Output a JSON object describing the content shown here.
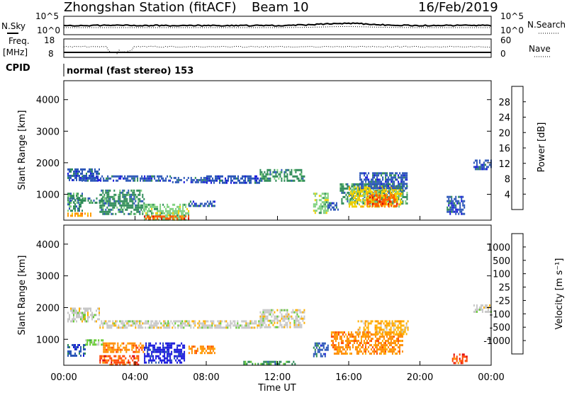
{
  "header": {
    "station": "Zhongshan Station (fitACF)",
    "beam": "Beam 10",
    "date": "16/Feb/2019"
  },
  "noise_panel": {
    "left_label": "N.Sky",
    "left_ticks": [
      "10^5",
      "10^0"
    ],
    "right_ticks": [
      "10^5",
      "10^0"
    ],
    "right_label": "N.Search"
  },
  "freq_panel": {
    "left_label_1": "Freq.",
    "left_label_2": "[MHz]",
    "left_ticks": [
      "18",
      "8"
    ],
    "right_ticks": [
      "60",
      "0"
    ],
    "right_label": "Nave"
  },
  "cpid": {
    "label": "CPID",
    "value": "normal (fast stereo) 153"
  },
  "colors": {
    "power": [
      "#1a1adc",
      "#2b56b8",
      "#2e8b57",
      "#7fd17f",
      "#f0d000",
      "#ff9900",
      "#ff5a00",
      "#e00000"
    ],
    "velocity": [
      "#e00000",
      "#ff4400",
      "#ff8c00",
      "#ffb000",
      "#c8c8c8",
      "#66cc33",
      "#2e8b57",
      "#2b56b8",
      "#1a1adc"
    ]
  },
  "chart_data": [
    {
      "type": "heatmap",
      "title": "",
      "ylabel": "Slant Range [km]",
      "xlabel": "",
      "ylim": [
        180,
        4600
      ],
      "yticks": [
        "1000",
        "2000",
        "3000",
        "4000"
      ],
      "colorbar": {
        "label": "Power [dB]",
        "ticks": [
          "4",
          "8",
          "12",
          "16",
          "20",
          "24",
          "28"
        ],
        "range": [
          0,
          32
        ]
      },
      "regions": [
        {
          "t0": 0.2,
          "t1": 2.0,
          "r0": 1480,
          "r1": 1820,
          "v": 6
        },
        {
          "t0": 1.0,
          "t1": 6.0,
          "r0": 1400,
          "r1": 1600,
          "v": 5
        },
        {
          "t0": 6.0,
          "t1": 8.0,
          "r0": 1350,
          "r1": 1550,
          "v": 4
        },
        {
          "t0": 8.0,
          "t1": 11.0,
          "r0": 1380,
          "r1": 1600,
          "v": 5
        },
        {
          "t0": 11.0,
          "t1": 13.5,
          "r0": 1400,
          "r1": 1800,
          "v": 8
        },
        {
          "t0": 0.2,
          "t1": 1.0,
          "r0": 500,
          "r1": 1050,
          "v": 8
        },
        {
          "t0": 0.2,
          "t1": 1.5,
          "r0": 320,
          "r1": 420,
          "v": 22
        },
        {
          "t0": 0.3,
          "t1": 2.4,
          "r0": 760,
          "r1": 900,
          "v": 10
        },
        {
          "t0": 2.0,
          "t1": 4.5,
          "r0": 350,
          "r1": 1150,
          "v": 11
        },
        {
          "t0": 4.5,
          "t1": 7.0,
          "r0": 200,
          "r1": 700,
          "v": 14
        },
        {
          "t0": 4.5,
          "t1": 7.0,
          "r0": 200,
          "r1": 330,
          "v": 26
        },
        {
          "t0": 7.0,
          "t1": 8.5,
          "r0": 600,
          "r1": 800,
          "v": 7
        },
        {
          "t0": 14.0,
          "t1": 14.8,
          "r0": 380,
          "r1": 1050,
          "v": 14
        },
        {
          "t0": 14.8,
          "t1": 15.4,
          "r0": 500,
          "r1": 750,
          "v": 7
        },
        {
          "t0": 15.5,
          "t1": 19.3,
          "r0": 700,
          "r1": 1350,
          "v": 9
        },
        {
          "t0": 16.0,
          "t1": 19.0,
          "r0": 600,
          "r1": 1250,
          "v": 18
        },
        {
          "t0": 17.0,
          "t1": 18.7,
          "r0": 600,
          "r1": 1000,
          "v": 26
        },
        {
          "t0": 16.6,
          "t1": 19.3,
          "r0": 1200,
          "r1": 1700,
          "v": 6
        },
        {
          "t0": 21.5,
          "t1": 22.5,
          "r0": 400,
          "r1": 950,
          "v": 7
        },
        {
          "t0": 23.0,
          "t1": 24.0,
          "r0": 1800,
          "r1": 2100,
          "v": 5
        }
      ]
    },
    {
      "type": "heatmap",
      "title": "",
      "ylabel": "Slant Range [km]",
      "xlabel": "Time UT",
      "ylim": [
        180,
        4600
      ],
      "yticks": [
        "1000",
        "2000",
        "3000",
        "4000"
      ],
      "xticks": [
        "00:00",
        "04:00",
        "08:00",
        "12:00",
        "16:00",
        "20:00",
        "00:00"
      ],
      "colorbar": {
        "label": "Velocity [m s⁻¹]",
        "ticks": [
          "1000",
          "500",
          "100",
          "25",
          "-25",
          "-100",
          "-500",
          "-1000"
        ]
      },
      "regions": [
        {
          "t0": 0.2,
          "t1": 2.0,
          "r0": 1550,
          "r1": 2000,
          "v": 4
        },
        {
          "t0": 2.0,
          "t1": 11.0,
          "r0": 1380,
          "r1": 1600,
          "v": 4
        },
        {
          "t0": 11.0,
          "t1": 13.5,
          "r0": 1400,
          "r1": 1950,
          "v": 4
        },
        {
          "t0": 0.2,
          "t1": 1.2,
          "r0": 450,
          "r1": 850,
          "v": 7
        },
        {
          "t0": 1.2,
          "t1": 2.2,
          "r0": 800,
          "r1": 1000,
          "v": 5
        },
        {
          "t0": 2.2,
          "t1": 4.5,
          "r0": 600,
          "r1": 900,
          "v": 2
        },
        {
          "t0": 4.5,
          "t1": 6.8,
          "r0": 250,
          "r1": 900,
          "v": 8
        },
        {
          "t0": 2.0,
          "t1": 4.2,
          "r0": 200,
          "r1": 500,
          "v": 1
        },
        {
          "t0": 7.0,
          "t1": 8.5,
          "r0": 550,
          "r1": 800,
          "v": 2
        },
        {
          "t0": 10.0,
          "t1": 13.0,
          "r0": 220,
          "r1": 320,
          "v": 6
        },
        {
          "t0": 14.0,
          "t1": 14.8,
          "r0": 450,
          "r1": 900,
          "v": 7
        },
        {
          "t0": 15.0,
          "t1": 19.0,
          "r0": 550,
          "r1": 1250,
          "v": 2
        },
        {
          "t0": 16.5,
          "t1": 19.3,
          "r0": 1150,
          "r1": 1600,
          "v": 3
        },
        {
          "t0": 21.8,
          "t1": 22.6,
          "r0": 250,
          "r1": 550,
          "v": 1
        },
        {
          "t0": 23.0,
          "t1": 24.0,
          "r0": 1850,
          "r1": 2100,
          "v": 4
        }
      ]
    }
  ]
}
